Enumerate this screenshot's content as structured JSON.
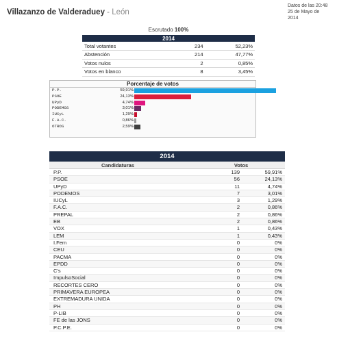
{
  "header": {
    "municipality": "Villazanzo de Valderaduey",
    "province": "León",
    "time_line1": "Datos de las 20:48",
    "time_line2": "25 de Mayo de 2014"
  },
  "scrutiny": {
    "label": "Escrutado",
    "value": "100%"
  },
  "summary": {
    "year": "2014",
    "rows": [
      {
        "label": "Total votantes",
        "count": "234",
        "pct": "52,23%"
      },
      {
        "label": "Abstención",
        "count": "214",
        "pct": "47,77%"
      },
      {
        "label": "Votos nulos",
        "count": "2",
        "pct": "0,85%"
      },
      {
        "label": "Votos en blanco",
        "count": "8",
        "pct": "3,45%"
      }
    ]
  },
  "percent_chart": {
    "title": "Porcentaje de votos",
    "rows": [
      {
        "party": "P.P.",
        "pct_text": "59,91%",
        "value": 59.91,
        "color": "#1ba1e0"
      },
      {
        "party": "PSOE",
        "pct_text": "24,13%",
        "value": 24.13,
        "color": "#dc1f3c"
      },
      {
        "party": "UPyD",
        "pct_text": "4,74%",
        "value": 4.74,
        "color": "#e0157f"
      },
      {
        "party": "PODEMOS",
        "pct_text": "3,01%",
        "value": 3.01,
        "color": "#6a2a63"
      },
      {
        "party": "IUCyL",
        "pct_text": "1,29%",
        "value": 1.29,
        "color": "#c8102e"
      },
      {
        "party": "F.A.C.",
        "pct_text": "0,86%",
        "value": 0.86,
        "color": "#9a9a9a"
      },
      {
        "party": "OTROS",
        "pct_text": "2,59%",
        "value": 2.59,
        "color": "#404040"
      }
    ]
  },
  "results": {
    "year": "2014",
    "col_candidates": "Candidaturas",
    "col_votes": "Votos",
    "rows": [
      {
        "name": "P.P.",
        "votes": "139",
        "pct": "59,91%"
      },
      {
        "name": "PSOE",
        "votes": "56",
        "pct": "24,13%"
      },
      {
        "name": "UPyD",
        "votes": "11",
        "pct": "4,74%"
      },
      {
        "name": "PODEMOS",
        "votes": "7",
        "pct": "3,01%"
      },
      {
        "name": "IUCyL",
        "votes": "3",
        "pct": "1,29%"
      },
      {
        "name": "F.A.C.",
        "votes": "2",
        "pct": "0,86%"
      },
      {
        "name": "PREPAL",
        "votes": "2",
        "pct": "0,86%"
      },
      {
        "name": "EB",
        "votes": "2",
        "pct": "0,86%"
      },
      {
        "name": "VOX",
        "votes": "1",
        "pct": "0,43%"
      },
      {
        "name": "LEM",
        "votes": "1",
        "pct": "0,43%"
      },
      {
        "name": "I.Fem",
        "votes": "0",
        "pct": "0%"
      },
      {
        "name": "CEU",
        "votes": "0",
        "pct": "0%"
      },
      {
        "name": "PACMA",
        "votes": "0",
        "pct": "0%"
      },
      {
        "name": "EPDD",
        "votes": "0",
        "pct": "0%"
      },
      {
        "name": "C's",
        "votes": "0",
        "pct": "0%"
      },
      {
        "name": "ImpulsoSocial",
        "votes": "0",
        "pct": "0%"
      },
      {
        "name": "RECORTES CERO",
        "votes": "0",
        "pct": "0%"
      },
      {
        "name": "PRIMAVERA EUROPEA",
        "votes": "0",
        "pct": "0%"
      },
      {
        "name": "EXTREMADURA UNIDA",
        "votes": "0",
        "pct": "0%"
      },
      {
        "name": "PH",
        "votes": "0",
        "pct": "0%"
      },
      {
        "name": "P-LIB",
        "votes": "0",
        "pct": "0%"
      },
      {
        "name": "FE de las JONS",
        "votes": "0",
        "pct": "0%"
      },
      {
        "name": "P.C.P.E.",
        "votes": "0",
        "pct": "0%"
      }
    ]
  }
}
